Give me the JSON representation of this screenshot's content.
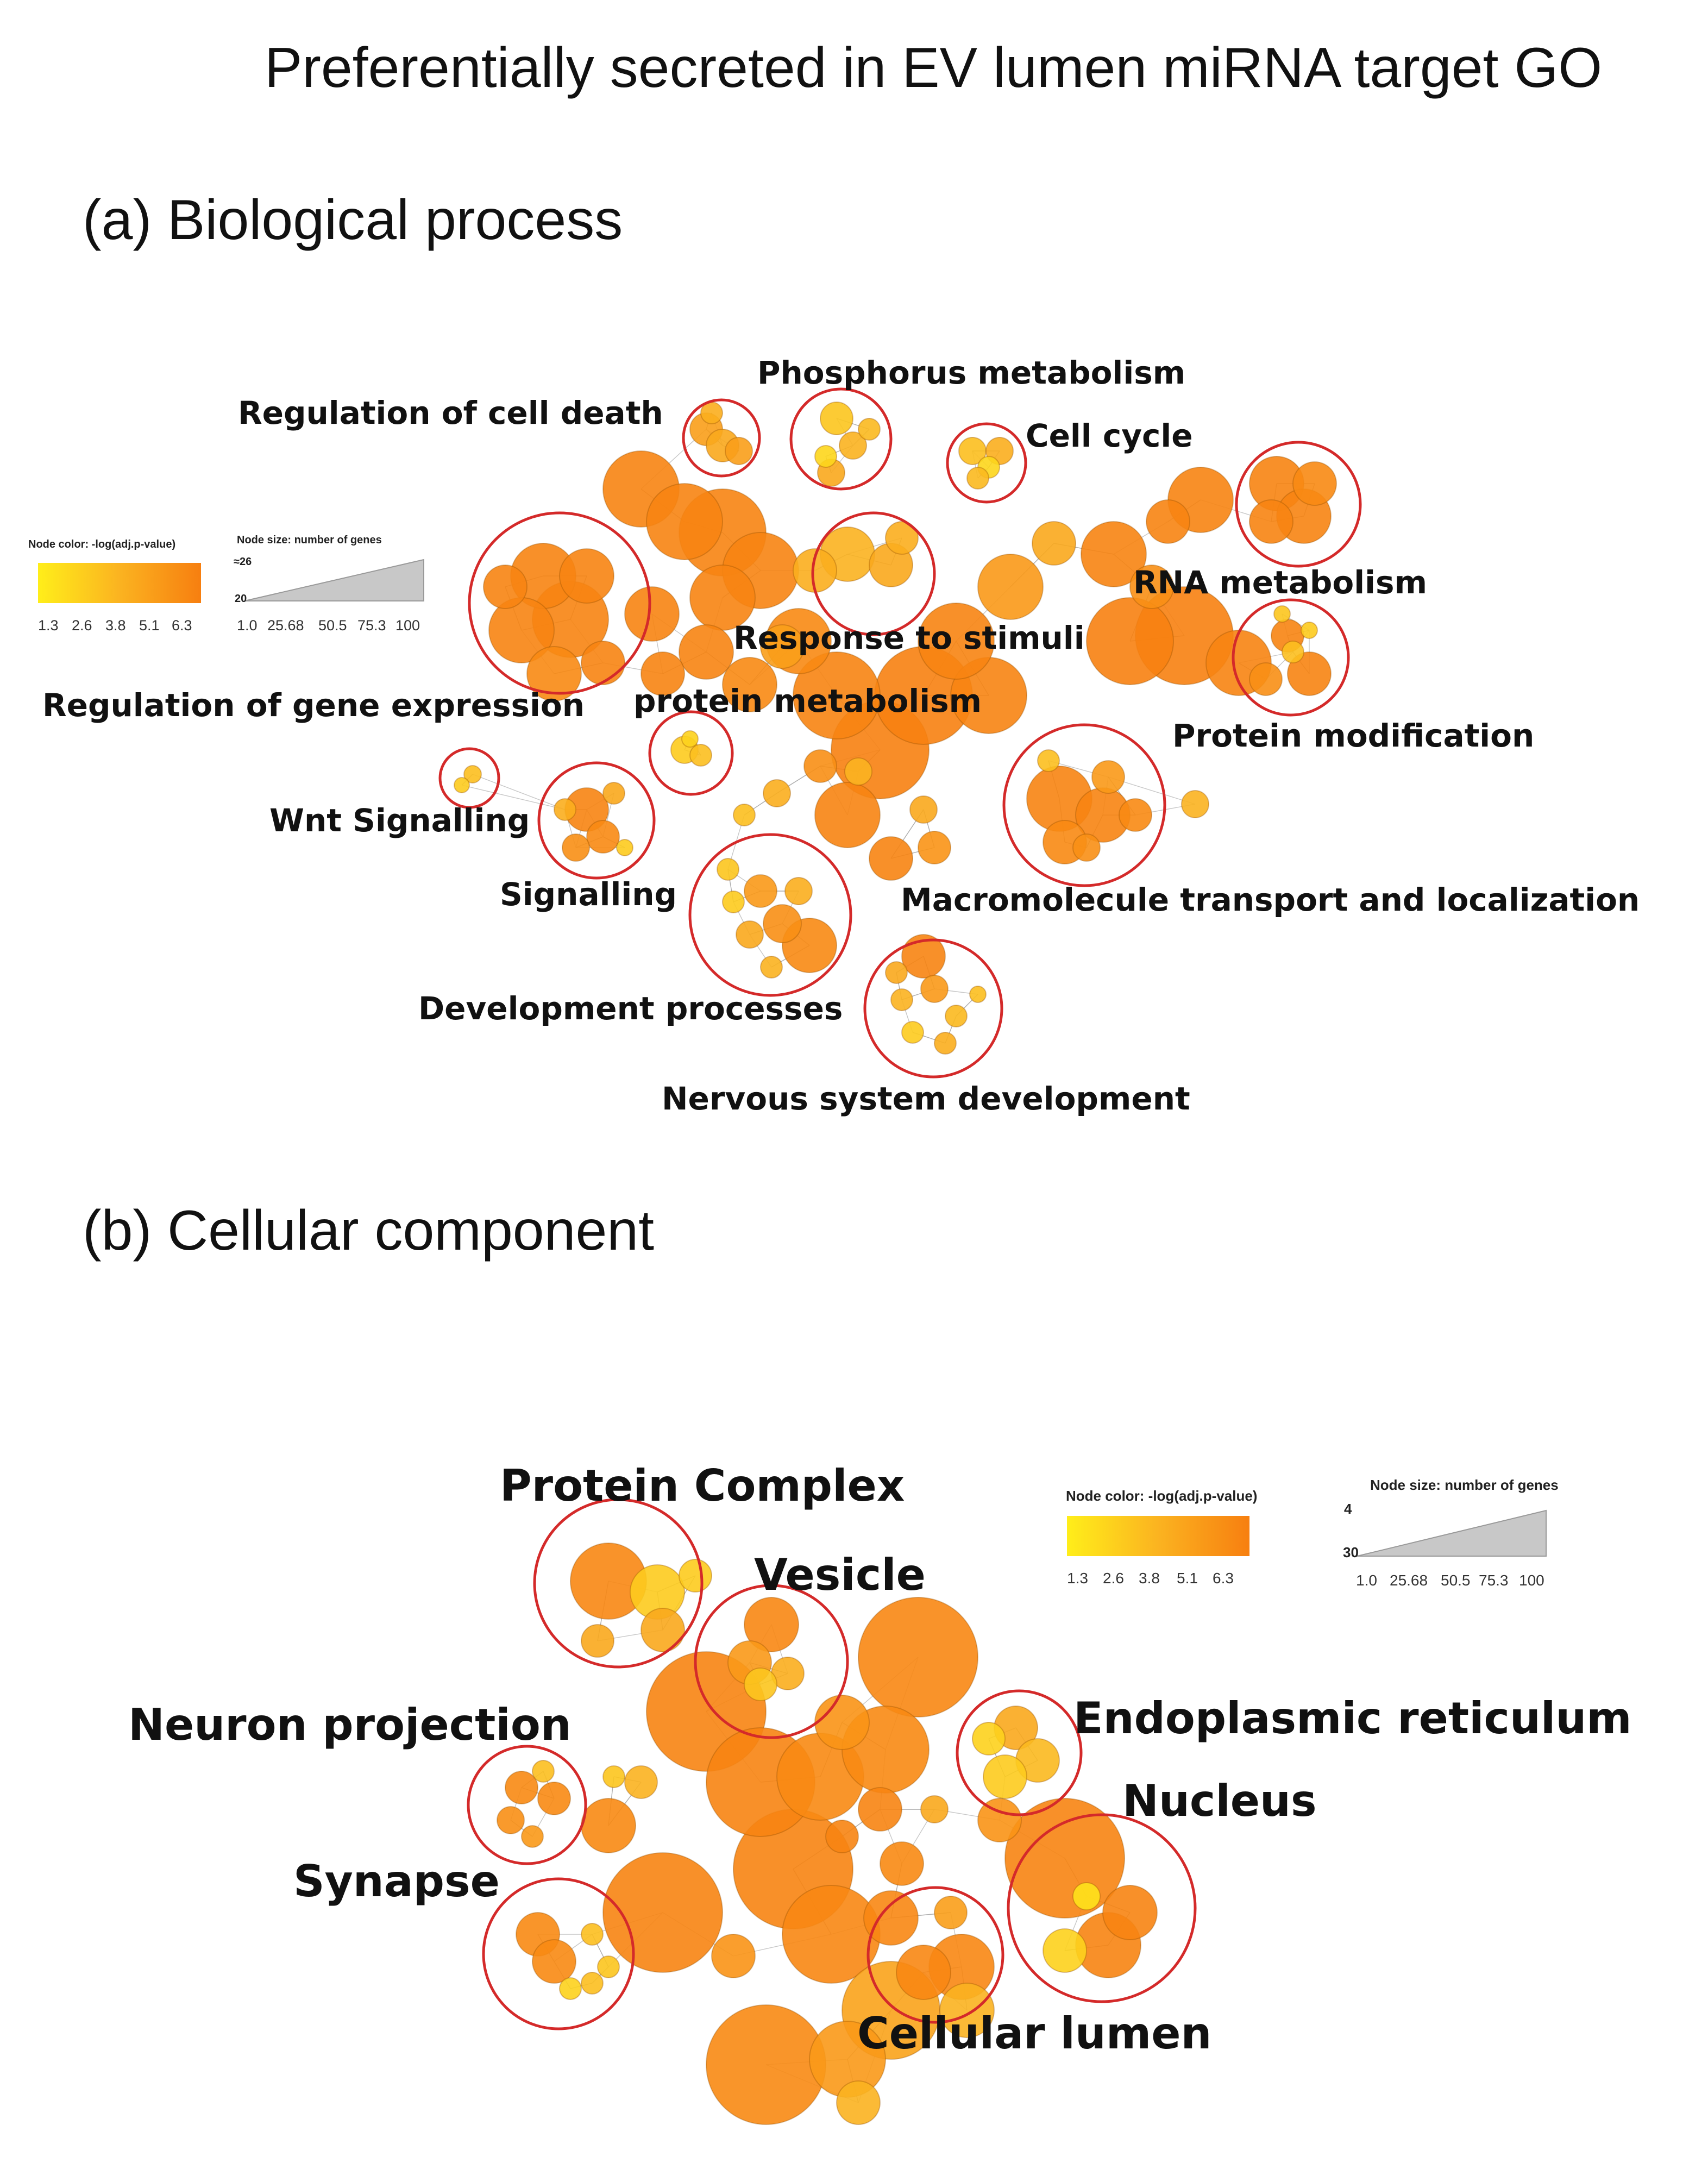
{
  "title": "Preferentially secreted in EV lumen miRNA target GO",
  "panels": [
    {
      "id": "a",
      "title": "(a)  Biological process",
      "legend": {
        "color_title": "Node color: -log(adj.p-value)",
        "color_ticks": [
          "1.3",
          "2.6",
          "3.8",
          "5.1",
          "6.3"
        ],
        "size_title": "Node size: number of genes",
        "size_ticks": [
          "1.0",
          "25.68",
          "50.5",
          "75.3",
          "100"
        ],
        "size_axis_marks": [
          "≈26",
          "20"
        ]
      },
      "clusters": [
        "Phosphorus metabolism",
        "Regulation of cell death",
        "Cell cycle",
        "RNA metabolism",
        "Response to stimuli",
        "Regulation of gene expression",
        "protein metabolism",
        "Protein modification",
        "Wnt Signalling",
        "Signalling",
        "Macromolecule transport and localization",
        "Development processes",
        "Nervous system development"
      ]
    },
    {
      "id": "b",
      "title": "(b) Cellular component",
      "legend": {
        "color_title": "Node color: -log(adj.p-value)",
        "color_ticks": [
          "1.3",
          "2.6",
          "3.8",
          "5.1",
          "6.3"
        ],
        "size_title": "Node size: number of genes",
        "size_ticks": [
          "1.0",
          "25.68",
          "50.5",
          "75.3",
          "100"
        ],
        "size_axis_marks": [
          "4",
          "30"
        ]
      },
      "clusters": [
        "Protein Complex",
        "Vesicle",
        "Endoplasmic reticulum",
        "Neuron projection",
        "Nucleus",
        "Synapse",
        "Cellular lumen"
      ]
    }
  ],
  "colors": {
    "low": "#ffee1a",
    "mid": "#fbb320",
    "high": "#f77f10",
    "ring": "#d42a2a"
  }
}
